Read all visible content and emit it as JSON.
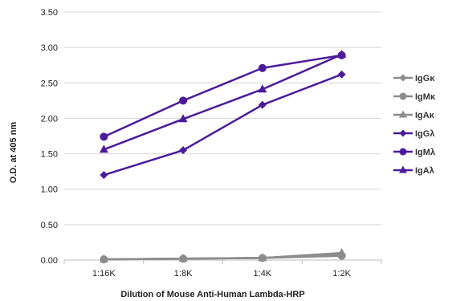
{
  "chart_data": {
    "type": "line",
    "title": "",
    "xlabel": "Dilution of Mouse Anti-Human Lambda-HRP",
    "ylabel": "O.D. at 405 nm",
    "categories": [
      "1:16K",
      "1:8K",
      "1:4K",
      "1:2K"
    ],
    "y_ticks": [
      "0.00",
      "0.50",
      "1.00",
      "1.50",
      "2.00",
      "2.50",
      "3.00",
      "3.50"
    ],
    "ylim": [
      0,
      3.5
    ],
    "grid": "horizontal",
    "legend_position": "right",
    "series": [
      {
        "name": "IgGκ",
        "values": [
          0.01,
          0.02,
          0.03,
          0.08
        ],
        "color": "#8c8c8c",
        "marker": "diamond"
      },
      {
        "name": "IgMκ",
        "values": [
          0.01,
          0.02,
          0.03,
          0.06
        ],
        "color": "#8c8c8c",
        "marker": "circle"
      },
      {
        "name": "IgAκ",
        "values": [
          0.01,
          0.02,
          0.03,
          0.1
        ],
        "color": "#8c8c8c",
        "marker": "triangle"
      },
      {
        "name": "IgGλ",
        "values": [
          1.2,
          1.55,
          2.19,
          2.62
        ],
        "color": "#4b1b9b",
        "marker": "diamond"
      },
      {
        "name": "IgMλ",
        "values": [
          1.74,
          2.25,
          2.71,
          2.89
        ],
        "color": "#4b1b9b",
        "marker": "circle"
      },
      {
        "name": "IgAλ",
        "values": [
          1.56,
          1.99,
          2.41,
          2.9
        ],
        "color": "#4b1b9b",
        "marker": "triangle"
      }
    ]
  }
}
